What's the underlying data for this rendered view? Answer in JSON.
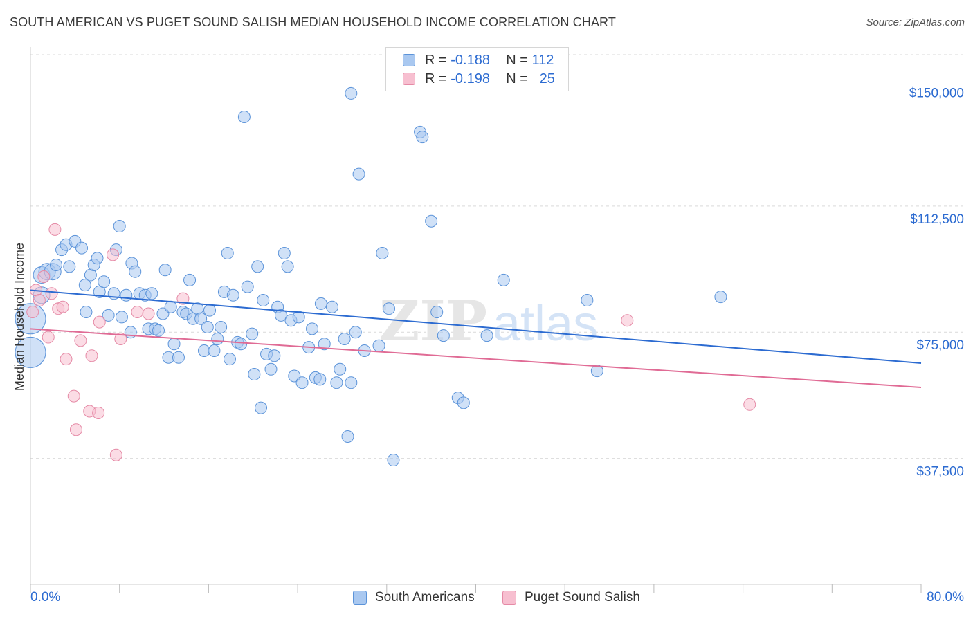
{
  "title": "SOUTH AMERICAN VS PUGET SOUND SALISH MEDIAN HOUSEHOLD INCOME CORRELATION CHART",
  "source": "Source: ZipAtlas.com",
  "watermark": {
    "part1": "ZIP",
    "part2": "atlas"
  },
  "legend": [
    {
      "r_label": "R =",
      "r_value": "-0.188",
      "n_label": "N =",
      "n_value": "112"
    },
    {
      "r_label": "R =",
      "r_value": "-0.198",
      "n_label": "N =",
      "n_value": "25"
    }
  ],
  "colors": {
    "blue_fill": "#a9c8f0",
    "blue_stroke": "#5b93d9",
    "blue_line": "#2c6bd1",
    "pink_fill": "#f7bfd0",
    "pink_stroke": "#e58aa6",
    "pink_line": "#e06b95",
    "grid": "#d9d9d9",
    "axis_label": "#2c6bd1"
  },
  "chart_data": {
    "type": "scatter",
    "title": "SOUTH AMERICAN VS PUGET SOUND SALISH MEDIAN HOUSEHOLD INCOME CORRELATION CHART",
    "xlabel": "",
    "ylabel": "Median Household Income",
    "xlim": [
      0,
      80
    ],
    "ylim": [
      0,
      157500
    ],
    "x_tick_labels": [
      "0.0%",
      "80.0%"
    ],
    "y_ticks": [
      37500,
      75000,
      112500,
      150000
    ],
    "y_tick_labels": [
      "$37,500",
      "$75,000",
      "$112,500",
      "$150,000"
    ],
    "grid": true,
    "legend_position": "top-center",
    "series": [
      {
        "name": "South Americans",
        "color": "#5b93d9",
        "trend": {
          "x": [
            0,
            80
          ],
          "y": [
            87500,
            65800
          ]
        },
        "points": [
          [
            0,
            69000,
            "L"
          ],
          [
            0,
            79000,
            "L"
          ],
          [
            1,
            92000,
            "M"
          ],
          [
            1.5,
            93000,
            "M"
          ],
          [
            2,
            93000,
            "M"
          ],
          [
            1,
            86000,
            "M"
          ],
          [
            2.3,
            95000
          ],
          [
            2.8,
            99500
          ],
          [
            3.2,
            101000
          ],
          [
            3.5,
            94500
          ],
          [
            4,
            102000
          ],
          [
            4.6,
            100000
          ],
          [
            4.9,
            89000
          ],
          [
            5,
            81000
          ],
          [
            5.4,
            92000
          ],
          [
            5.7,
            95000
          ],
          [
            6,
            97000
          ],
          [
            6.2,
            87000
          ],
          [
            6.6,
            90000
          ],
          [
            7,
            80000
          ],
          [
            7.5,
            86500
          ],
          [
            7.7,
            99500
          ],
          [
            8,
            106500
          ],
          [
            8.2,
            79500
          ],
          [
            8.6,
            86000
          ],
          [
            9,
            75000
          ],
          [
            9.1,
            95500
          ],
          [
            9.4,
            93000
          ],
          [
            9.8,
            86500
          ],
          [
            10.3,
            86000
          ],
          [
            10.6,
            76000
          ],
          [
            10.9,
            86500
          ],
          [
            11.2,
            76000
          ],
          [
            11.5,
            75500
          ],
          [
            11.9,
            80500
          ],
          [
            12.1,
            93500
          ],
          [
            12.4,
            67500
          ],
          [
            12.6,
            82500
          ],
          [
            12.9,
            71500
          ],
          [
            13.3,
            67500
          ],
          [
            13.7,
            81000
          ],
          [
            14,
            80500
          ],
          [
            14.3,
            90500
          ],
          [
            14.6,
            79000
          ],
          [
            15,
            82000
          ],
          [
            15.3,
            79000
          ],
          [
            15.6,
            69500
          ],
          [
            15.9,
            76500
          ],
          [
            16.1,
            81500
          ],
          [
            16.5,
            69500
          ],
          [
            16.8,
            73000
          ],
          [
            17.1,
            76500
          ],
          [
            17.4,
            87000
          ],
          [
            17.7,
            98500
          ],
          [
            17.9,
            67000
          ],
          [
            18.2,
            86000
          ],
          [
            18.6,
            72000
          ],
          [
            18.9,
            71500
          ],
          [
            19.2,
            139000
          ],
          [
            19.5,
            88500
          ],
          [
            19.9,
            74500
          ],
          [
            20.1,
            62500
          ],
          [
            20.4,
            94500
          ],
          [
            20.7,
            52500
          ],
          [
            20.9,
            84500
          ],
          [
            21.2,
            68500
          ],
          [
            21.6,
            64000
          ],
          [
            21.9,
            68000
          ],
          [
            22.2,
            82500
          ],
          [
            22.5,
            80000
          ],
          [
            22.8,
            98500
          ],
          [
            23.1,
            94500
          ],
          [
            23.4,
            78500
          ],
          [
            23.7,
            62000
          ],
          [
            24.1,
            79500
          ],
          [
            24.4,
            60000
          ],
          [
            25,
            70500
          ],
          [
            25.3,
            76000
          ],
          [
            25.6,
            61500
          ],
          [
            26,
            61000
          ],
          [
            26.4,
            71500
          ],
          [
            26.1,
            83500
          ],
          [
            27.1,
            82500
          ],
          [
            27.5,
            60000
          ],
          [
            27.8,
            64000
          ],
          [
            28.2,
            73000
          ],
          [
            28.5,
            44000
          ],
          [
            28.8,
            60000
          ],
          [
            28.8,
            146000
          ],
          [
            29.2,
            75000
          ],
          [
            29.5,
            122000
          ],
          [
            30,
            69500
          ],
          [
            31.3,
            71000
          ],
          [
            31.6,
            98500
          ],
          [
            32.2,
            82000
          ],
          [
            32.6,
            37000
          ],
          [
            35,
            134500
          ],
          [
            35.2,
            133000
          ],
          [
            36,
            108000
          ],
          [
            36.5,
            81000
          ],
          [
            37.1,
            74000
          ],
          [
            38.4,
            55500
          ],
          [
            38.9,
            54000
          ],
          [
            41,
            74000
          ],
          [
            42.5,
            90500
          ],
          [
            50,
            84500
          ],
          [
            50.9,
            63500
          ],
          [
            62,
            85500
          ]
        ]
      },
      {
        "name": "Puget Sound Salish",
        "color": "#e58aa6",
        "trend": {
          "x": [
            0,
            80
          ],
          "y": [
            76000,
            58600
          ]
        },
        "points": [
          [
            0.2,
            81000
          ],
          [
            0.5,
            87500
          ],
          [
            0.8,
            84500
          ],
          [
            1.2,
            91500
          ],
          [
            1.6,
            73500
          ],
          [
            1.9,
            86500
          ],
          [
            2.2,
            105500
          ],
          [
            2.5,
            82000
          ],
          [
            2.9,
            82500
          ],
          [
            3.2,
            67000
          ],
          [
            3.9,
            56000
          ],
          [
            4.1,
            46000
          ],
          [
            4.5,
            72500
          ],
          [
            5.3,
            51500
          ],
          [
            5.5,
            68000
          ],
          [
            6.1,
            51000
          ],
          [
            6.2,
            78000
          ],
          [
            7.4,
            98000
          ],
          [
            7.7,
            38500
          ],
          [
            8.1,
            73000
          ],
          [
            9.6,
            81000
          ],
          [
            10.6,
            80500
          ],
          [
            13.7,
            85000
          ],
          [
            53.6,
            78500
          ],
          [
            64.6,
            53500
          ]
        ]
      }
    ]
  },
  "axis": {
    "x_min_label": "0.0%",
    "x_max_label": "80.0%",
    "y_label": "Median Household Income"
  },
  "bottom_legend": [
    "South Americans",
    "Puget Sound Salish"
  ]
}
